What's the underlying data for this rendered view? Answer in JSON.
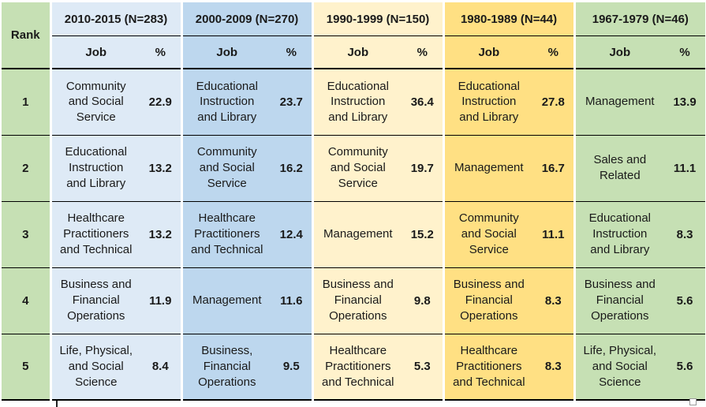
{
  "colors": {
    "rank_green": "#C6E0B4",
    "group_fills": [
      "#DEEAF6",
      "#BDD7EE",
      "#FFF2CC",
      "#FFE083",
      "#C6E0B4"
    ],
    "line_black": "#000000",
    "separator_white": "#FFFFFF",
    "text": "#1A1A1A"
  },
  "chart_data": {
    "type": "table",
    "rank_header": "Rank",
    "sub_headers": {
      "job": "Job",
      "pct": "%"
    },
    "groups": [
      "2010-2015 (N=283)",
      "2000-2009 (N=270)",
      "1990-1999 (N=150)",
      "1980-1989 (N=44)",
      "1967-1979 (N=46)"
    ],
    "rows": [
      {
        "rank": "1",
        "cells": [
          {
            "job": "Community and Social Service",
            "pct": "22.9"
          },
          {
            "job": "Educational Instruction and Library",
            "pct": "23.7"
          },
          {
            "job": "Educational Instruction and Library",
            "pct": "36.4"
          },
          {
            "job": "Educational Instruction and Library",
            "pct": "27.8"
          },
          {
            "job": "Management",
            "pct": "13.9"
          }
        ]
      },
      {
        "rank": "2",
        "cells": [
          {
            "job": "Educational Instruction and Library",
            "pct": "13.2"
          },
          {
            "job": "Community and Social Service",
            "pct": "16.2"
          },
          {
            "job": "Community and Social Service",
            "pct": "19.7"
          },
          {
            "job": "Management",
            "pct": "16.7"
          },
          {
            "job": "Sales and Related",
            "pct": "11.1"
          }
        ]
      },
      {
        "rank": "3",
        "cells": [
          {
            "job": "Healthcare Practitioners and Technical",
            "pct": "13.2"
          },
          {
            "job": "Healthcare Practitioners and Technical",
            "pct": "12.4"
          },
          {
            "job": "Management",
            "pct": "15.2"
          },
          {
            "job": "Community and Social Service",
            "pct": "11.1"
          },
          {
            "job": "Educational Instruction and Library",
            "pct": "8.3"
          }
        ]
      },
      {
        "rank": "4",
        "cells": [
          {
            "job": "Business and Financial Operations",
            "pct": "11.9"
          },
          {
            "job": "Management",
            "pct": "11.6"
          },
          {
            "job": "Business and Financial Operations",
            "pct": "9.8"
          },
          {
            "job": "Business and Financial Operations",
            "pct": "8.3"
          },
          {
            "job": "Business and Financial Operations",
            "pct": "5.6"
          }
        ]
      },
      {
        "rank": "5",
        "cells": [
          {
            "job": "Life, Physical, and Social Science",
            "pct": "8.4"
          },
          {
            "job": "Business, Financial Operations",
            "pct": "9.5"
          },
          {
            "job": "Healthcare Practitioners and Technical",
            "pct": "5.3"
          },
          {
            "job": "Healthcare Practitioners and Technical",
            "pct": "8.3"
          },
          {
            "job": "Life, Physical, and Social Science",
            "pct": "5.6"
          }
        ]
      }
    ]
  }
}
